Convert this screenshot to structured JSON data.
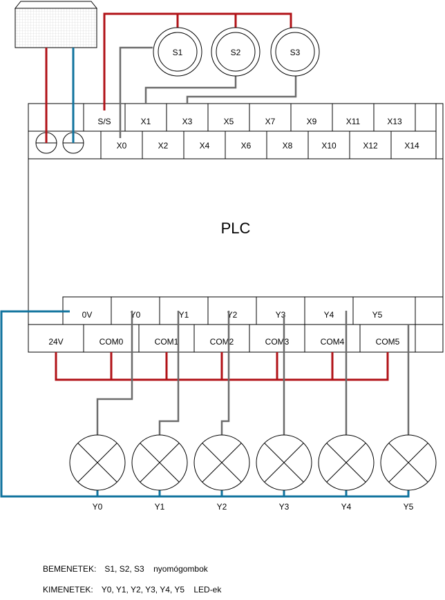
{
  "plc_label": "PLC",
  "buttons": [
    "S1",
    "S2",
    "S3"
  ],
  "input_terminals": {
    "top": [
      "S/S",
      "X1",
      "X3",
      "X5",
      "X7",
      "X9",
      "X11",
      "X13"
    ],
    "bottom": [
      "X0",
      "X2",
      "X4",
      "X6",
      "X8",
      "X10",
      "X12",
      "X14"
    ]
  },
  "output_terminals": {
    "top": [
      "0V",
      "Y0",
      "Y1",
      "Y2",
      "Y3",
      "Y4",
      "Y5"
    ],
    "bottom": [
      "24V",
      "COM0",
      "COM1",
      "COM2",
      "COM3",
      "COM4",
      "COM5"
    ]
  },
  "lamps": [
    "Y0",
    "Y1",
    "Y2",
    "Y3",
    "Y4",
    "Y5"
  ],
  "legend": {
    "inputs_label": "BEMENETEK:",
    "inputs_value": "S1, S2, S3    nyomógombok",
    "outputs_label": "KIMENETEK:",
    "outputs_value": "Y0, Y1, Y2, Y3, Y4, Y5    LED-ek"
  },
  "colors": {
    "power_red": "#b11217",
    "neutral_blue": "#10739e",
    "signal_gray": "#6b6b6b",
    "outline": "#000000"
  }
}
